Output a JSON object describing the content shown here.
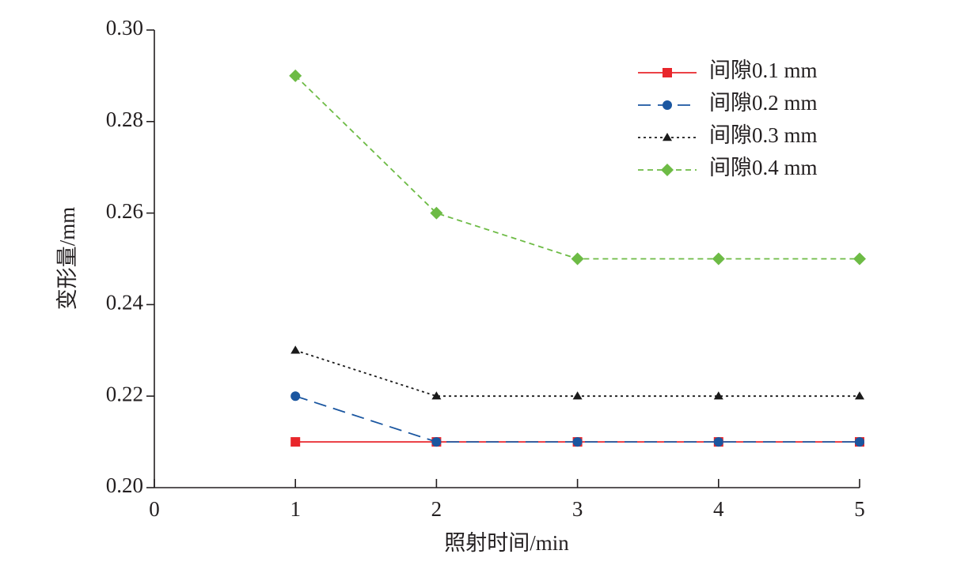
{
  "chart_data": {
    "type": "line",
    "xlabel": "照射时间/min",
    "ylabel": "变形量/mm",
    "x": [
      1,
      2,
      3,
      4,
      5
    ],
    "series": [
      {
        "name": "间隙0.1 mm",
        "color": "#e8262b",
        "linestyle": "solid",
        "marker": "square",
        "values": [
          0.21,
          0.21,
          0.21,
          0.21,
          0.21
        ]
      },
      {
        "name": "间隙0.2 mm",
        "color": "#1a56a0",
        "linestyle": "dashed",
        "marker": "circle",
        "values": [
          0.22,
          0.21,
          0.21,
          0.21,
          0.21
        ]
      },
      {
        "name": "间隙0.3 mm",
        "color": "#1a1a1a",
        "linestyle": "dotted",
        "marker": "triangle",
        "values": [
          0.23,
          0.22,
          0.22,
          0.22,
          0.22
        ]
      },
      {
        "name": "间隙0.4 mm",
        "color": "#6dbb45",
        "linestyle": "short-dashed",
        "marker": "diamond",
        "values": [
          0.29,
          0.26,
          0.25,
          0.25,
          0.25
        ]
      }
    ],
    "xlim": [
      0,
      5
    ],
    "xticks": [
      0,
      1,
      2,
      3,
      4,
      5
    ],
    "ylim": [
      0.2,
      0.3
    ],
    "yticks": [
      {
        "value": 0.2,
        "label": "0.20"
      },
      0.22,
      0.24,
      0.26,
      0.28,
      {
        "value": 0.3,
        "label": "0.30"
      }
    ],
    "grid": false,
    "legend": "upper right"
  }
}
